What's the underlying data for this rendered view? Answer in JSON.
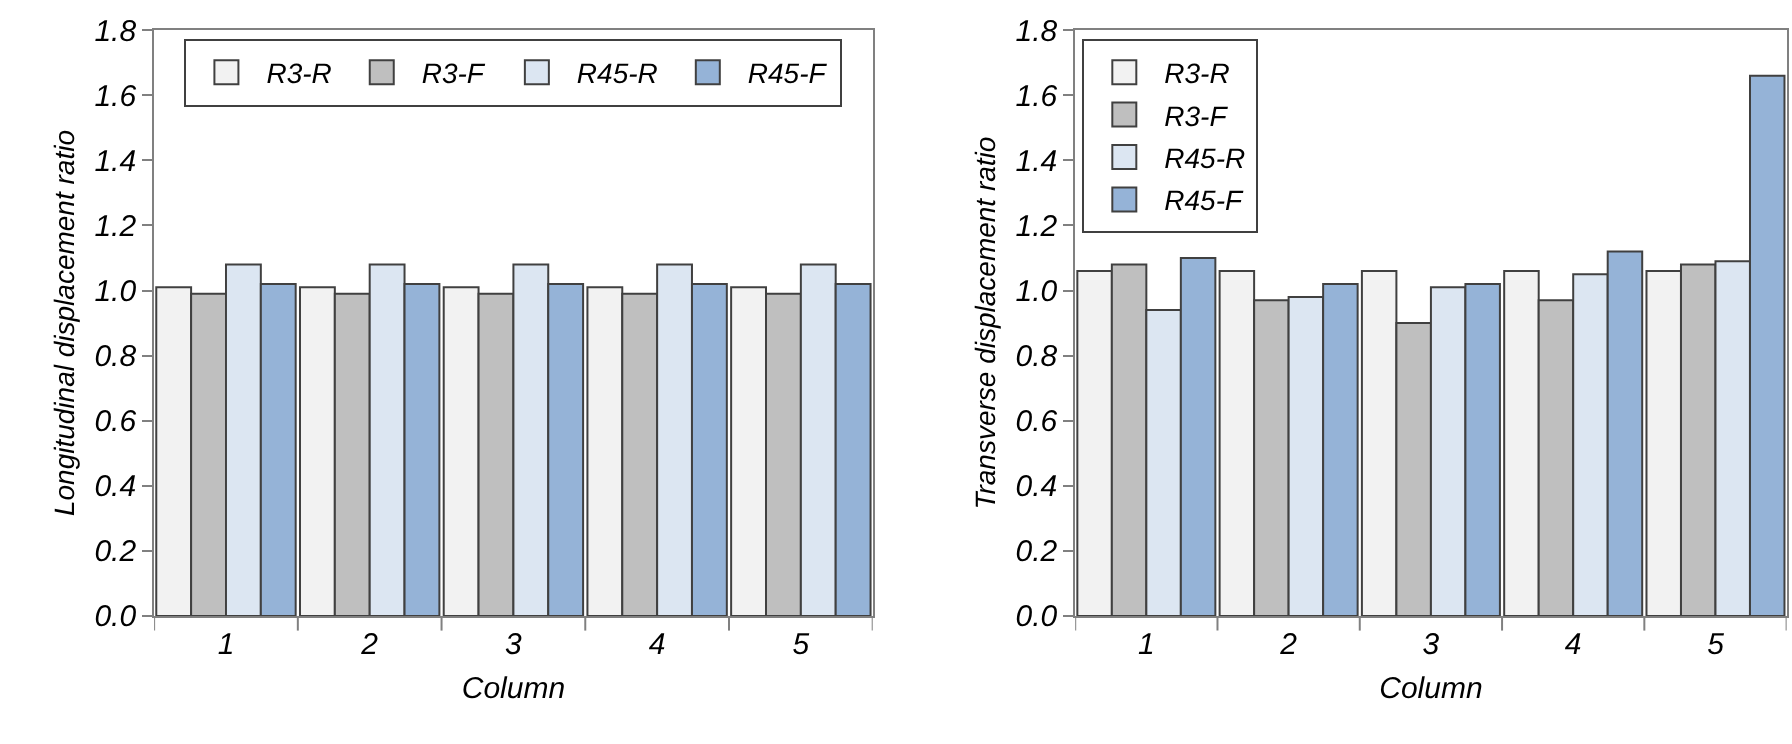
{
  "chart_data": [
    {
      "type": "bar",
      "xlabel": "Column",
      "ylabel": "Longitudinal displacement ratio",
      "categories": [
        "1",
        "2",
        "3",
        "4",
        "5"
      ],
      "ylim": [
        0,
        1.8
      ],
      "yticks": [
        "0.0",
        0.2,
        0.4,
        0.6,
        0.8,
        "1.0",
        1.2,
        1.4,
        1.6,
        1.8
      ],
      "legend": "top",
      "series": [
        {
          "name": "R3-R",
          "color": "#f2f2f2",
          "values": [
            1.01,
            1.01,
            1.01,
            1.01,
            1.01
          ]
        },
        {
          "name": "R3-F",
          "color": "#bfbfbf",
          "values": [
            0.99,
            0.99,
            0.99,
            0.99,
            0.99
          ]
        },
        {
          "name": "R45-R",
          "color": "#dce6f2",
          "values": [
            1.08,
            1.08,
            1.08,
            1.08,
            1.08
          ]
        },
        {
          "name": "R45-F",
          "color": "#95b3d7",
          "values": [
            1.02,
            1.02,
            1.02,
            1.02,
            1.02
          ]
        }
      ]
    },
    {
      "type": "bar",
      "xlabel": "Column",
      "ylabel": "Transverse displacement ratio",
      "categories": [
        "1",
        "2",
        "3",
        "4",
        "5"
      ],
      "ylim": [
        0,
        1.8
      ],
      "yticks": [
        "0.0",
        0.2,
        0.4,
        0.6,
        0.8,
        "1.0",
        1.2,
        1.4,
        1.6,
        1.8
      ],
      "legend": "top left",
      "series": [
        {
          "name": "R3-R",
          "color": "#f2f2f2",
          "values": [
            1.06,
            1.06,
            1.06,
            1.06,
            1.06
          ]
        },
        {
          "name": "R3-F",
          "color": "#bfbfbf",
          "values": [
            1.08,
            0.97,
            0.9,
            0.97,
            1.08
          ]
        },
        {
          "name": "R45-R",
          "color": "#dce6f2",
          "values": [
            0.94,
            0.98,
            1.01,
            1.05,
            1.09
          ]
        },
        {
          "name": "R45-F",
          "color": "#95b3d7",
          "values": [
            1.1,
            1.02,
            1.02,
            1.12,
            1.66
          ]
        }
      ]
    }
  ]
}
